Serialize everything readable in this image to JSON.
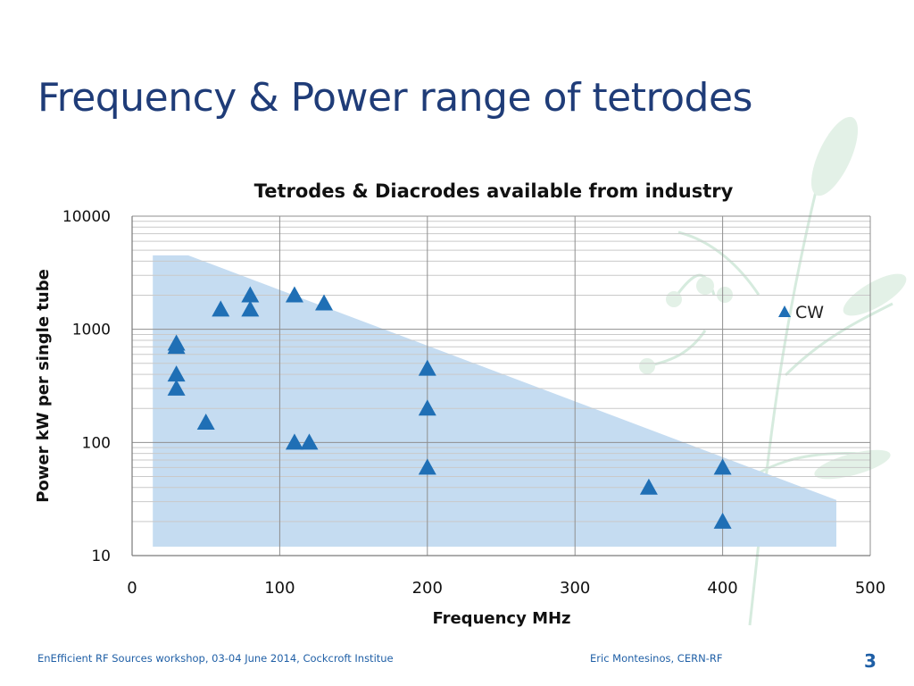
{
  "slide": {
    "title": "Frequency & Power range of tetrodes",
    "footer_left": "EnEfficient RF Sources workshop, 03-04 June 2014, Cockcroft Institue",
    "footer_right": "Eric Montesinos, CERN-RF",
    "page_number": "3"
  },
  "colors": {
    "title": "#1f3c78",
    "footer": "#1f5fa6",
    "marker": "#1f6fb5",
    "shaded_region": "#c5dcf1",
    "decoration": "#d6ebde"
  },
  "chart_data": {
    "type": "scatter",
    "title": "Tetrodes & Diacrodes available from industry",
    "xlabel": "Frequency MHz",
    "ylabel": "Power kW per single tube",
    "xlim": [
      0,
      500
    ],
    "ylim": [
      10,
      10000
    ],
    "y_scale": "log",
    "x_ticks": [
      "0",
      "100",
      "200",
      "300",
      "400",
      "500"
    ],
    "y_ticks": [
      "10",
      "100",
      "1000",
      "10000"
    ],
    "grid": true,
    "legend_position": "right",
    "series": [
      {
        "name": "CW",
        "marker": "triangle",
        "points": [
          {
            "x": 30,
            "y": 700
          },
          {
            "x": 30,
            "y": 750
          },
          {
            "x": 30,
            "y": 400
          },
          {
            "x": 30,
            "y": 300
          },
          {
            "x": 50,
            "y": 150
          },
          {
            "x": 60,
            "y": 1500
          },
          {
            "x": 80,
            "y": 1500
          },
          {
            "x": 80,
            "y": 2000
          },
          {
            "x": 110,
            "y": 2000
          },
          {
            "x": 110,
            "y": 100
          },
          {
            "x": 120,
            "y": 100
          },
          {
            "x": 130,
            "y": 1700
          },
          {
            "x": 200,
            "y": 450
          },
          {
            "x": 200,
            "y": 200
          },
          {
            "x": 200,
            "y": 60
          },
          {
            "x": 350,
            "y": 40
          },
          {
            "x": 400,
            "y": 60
          },
          {
            "x": 400,
            "y": 20
          }
        ]
      }
    ],
    "shaded_region": [
      {
        "x": 14,
        "y": 12
      },
      {
        "x": 14,
        "y": 4500
      },
      {
        "x": 38,
        "y": 4500
      },
      {
        "x": 477,
        "y": 31
      },
      {
        "x": 477,
        "y": 12
      }
    ]
  }
}
